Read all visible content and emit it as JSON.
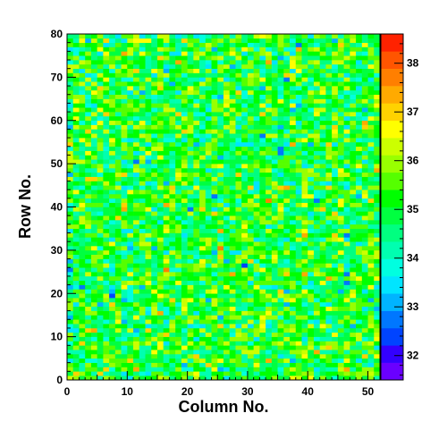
{
  "chart_data": {
    "type": "heatmap",
    "title": "",
    "xlabel": "Column No.",
    "ylabel": "Row No.",
    "xlim": [
      0,
      52
    ],
    "ylim": [
      0,
      80
    ],
    "x_bins": 52,
    "y_bins": 80,
    "x_ticks": [
      0,
      10,
      20,
      30,
      40,
      50
    ],
    "y_ticks": [
      0,
      10,
      20,
      30,
      40,
      50,
      60,
      70,
      80
    ],
    "zlim": [
      31.5,
      38.6
    ],
    "z_ticks": [
      32,
      33,
      34,
      35,
      36,
      37,
      38
    ],
    "value_distribution": {
      "mean": 35.1,
      "spread": 0.85
    },
    "palette": [
      "#6a00ff",
      "#3300ff",
      "#0044ff",
      "#0077ff",
      "#00b4ff",
      "#00e5ff",
      "#00ffe0",
      "#00ffb0",
      "#00ff80",
      "#00ff40",
      "#00ff00",
      "#55ff00",
      "#99ff00",
      "#ccff00",
      "#ffff00",
      "#ffd200",
      "#ffaa00",
      "#ff7f00",
      "#ff5500",
      "#ff2200"
    ],
    "grid": false,
    "legend": "right colorbar"
  }
}
